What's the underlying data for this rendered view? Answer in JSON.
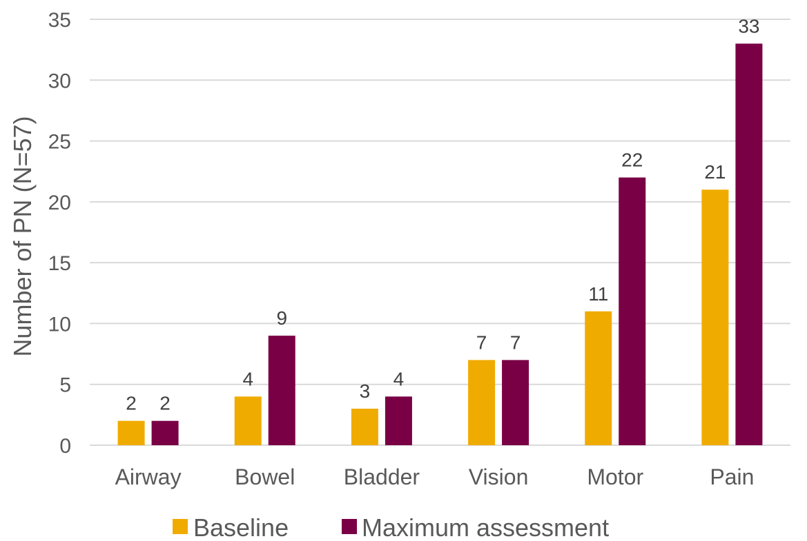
{
  "chart_data": {
    "type": "bar",
    "categories": [
      "Airway",
      "Bowel",
      "Bladder",
      "Vision",
      "Motor",
      "Pain"
    ],
    "series": [
      {
        "name": "Baseline",
        "values": [
          2,
          4,
          3,
          7,
          11,
          21
        ],
        "color": "#F0AB00"
      },
      {
        "name": "Maximum assessment",
        "values": [
          2,
          9,
          4,
          7,
          22,
          33
        ],
        "color": "#7A0045"
      }
    ],
    "title": "",
    "xlabel": "",
    "ylabel": "Number of PN (N=57)",
    "ylim": [
      0,
      35
    ],
    "yticks": [
      0,
      5,
      10,
      15,
      20,
      25,
      30,
      35
    ],
    "grid": true,
    "legend_position": "bottom",
    "gridline_color": "#d9d9d9"
  }
}
